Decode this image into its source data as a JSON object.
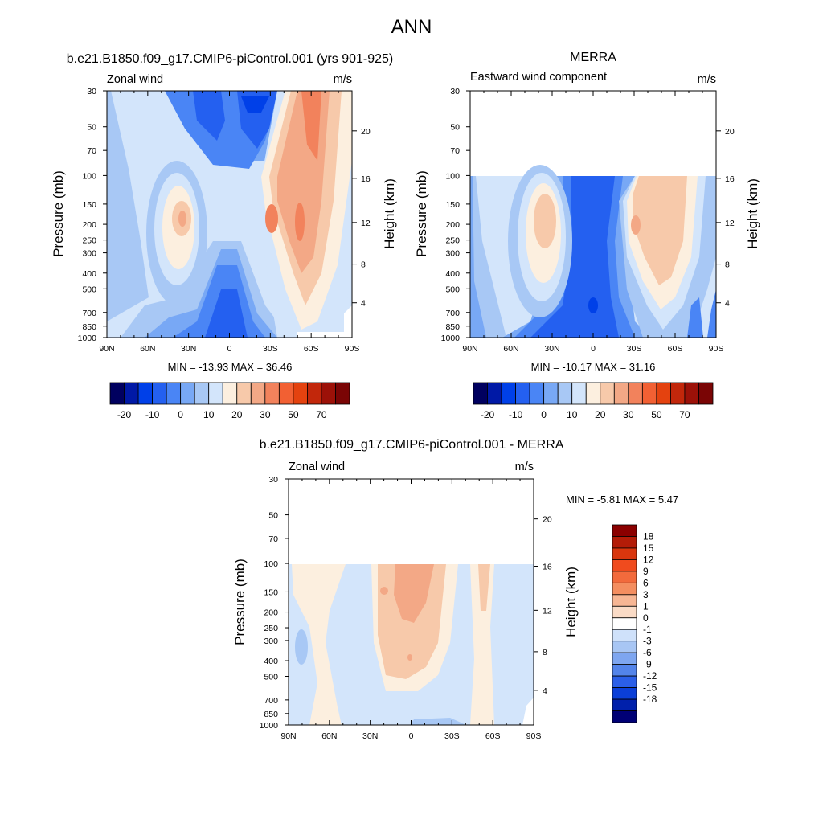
{
  "figure": {
    "title": "ANN"
  },
  "lat_ticks": [
    "90N",
    "60N",
    "30N",
    "0",
    "30S",
    "60S",
    "90S"
  ],
  "pressure_ticks": [
    "30",
    "50",
    "70",
    "100",
    "150",
    "200",
    "250",
    "300",
    "400",
    "500",
    "700",
    "850",
    "1000"
  ],
  "height_ticks": [
    "4",
    "8",
    "12",
    "16",
    "20"
  ],
  "chart_data": [
    {
      "type": "heatmap",
      "title": "b.e21.B1850.f09_g17.CMIP6-piControl.001 (yrs 901-925)",
      "left_string": "Zonal wind",
      "right_string": "m/s",
      "ylabel": "Pressure (mb)",
      "ylabel_right": "Height (km)",
      "x_range": [
        "90N",
        "90S"
      ],
      "y_range_mb": [
        1000,
        30
      ],
      "min_max": "MIN = -13.93  MAX = 36.46",
      "colorbar_labels": [
        "-20",
        "-10",
        "0",
        "10",
        "20",
        "30",
        "50",
        "70"
      ],
      "colorbar_colors": [
        "#00005f",
        "#0019a6",
        "#0040e8",
        "#2460f0",
        "#4a85f5",
        "#78a8f5",
        "#a8c8f5",
        "#d3e5fb",
        "#fcefdf",
        "#f7c9aa",
        "#f3a886",
        "#f2825c",
        "#f26033",
        "#e4420f",
        "#c2270b",
        "#9c1108",
        "#7a0505"
      ],
      "max_jet_ms": {
        "NH": 20,
        "SH": 27
      }
    },
    {
      "type": "heatmap",
      "title": "MERRA",
      "left_string": "Eastward wind component",
      "right_string": "m/s",
      "ylabel": "Pressure (mb)",
      "ylabel_right": "Height (km)",
      "x_range": [
        "90N",
        "90S"
      ],
      "y_range_mb": [
        1000,
        100
      ],
      "min_max": "MIN = -10.17  MAX = 31.16",
      "colorbar_labels": [
        "-20",
        "-10",
        "0",
        "10",
        "20",
        "30",
        "50",
        "70"
      ],
      "colorbar_colors": [
        "#00005f",
        "#0019a6",
        "#0040e8",
        "#2460f0",
        "#4a85f5",
        "#78a8f5",
        "#a8c8f5",
        "#d3e5fb",
        "#fcefdf",
        "#f7c9aa",
        "#f3a886",
        "#f2825c",
        "#f26033",
        "#e4420f",
        "#c2270b",
        "#9c1108",
        "#7a0505"
      ]
    },
    {
      "type": "heatmap",
      "title": "b.e21.B1850.f09_g17.CMIP6-piControl.001 - MERRA",
      "left_string": "Zonal wind",
      "right_string": "m/s",
      "ylabel": "Pressure (mb)",
      "ylabel_right": "Height (km)",
      "x_range": [
        "90N",
        "90S"
      ],
      "y_range_mb": [
        1000,
        100
      ],
      "min_max": "MIN =  -5.81  MAX =   5.47",
      "colorbar_labels": [
        "18",
        "15",
        "12",
        "9",
        "6",
        "3",
        "1",
        "0",
        "-1",
        "-3",
        "-6",
        "-9",
        "-12",
        "-15",
        "-18"
      ],
      "colorbar_colors": [
        "#8b0000",
        "#b41c08",
        "#d9360e",
        "#f04b1e",
        "#f26a3c",
        "#f48e60",
        "#f7b694",
        "#fadbc6",
        "#ffffff",
        "#cfe1fa",
        "#a8c6f4",
        "#7ea6f0",
        "#5384ea",
        "#2b5fe8",
        "#0b3fd8",
        "#0020ab",
        "#000075"
      ]
    }
  ]
}
